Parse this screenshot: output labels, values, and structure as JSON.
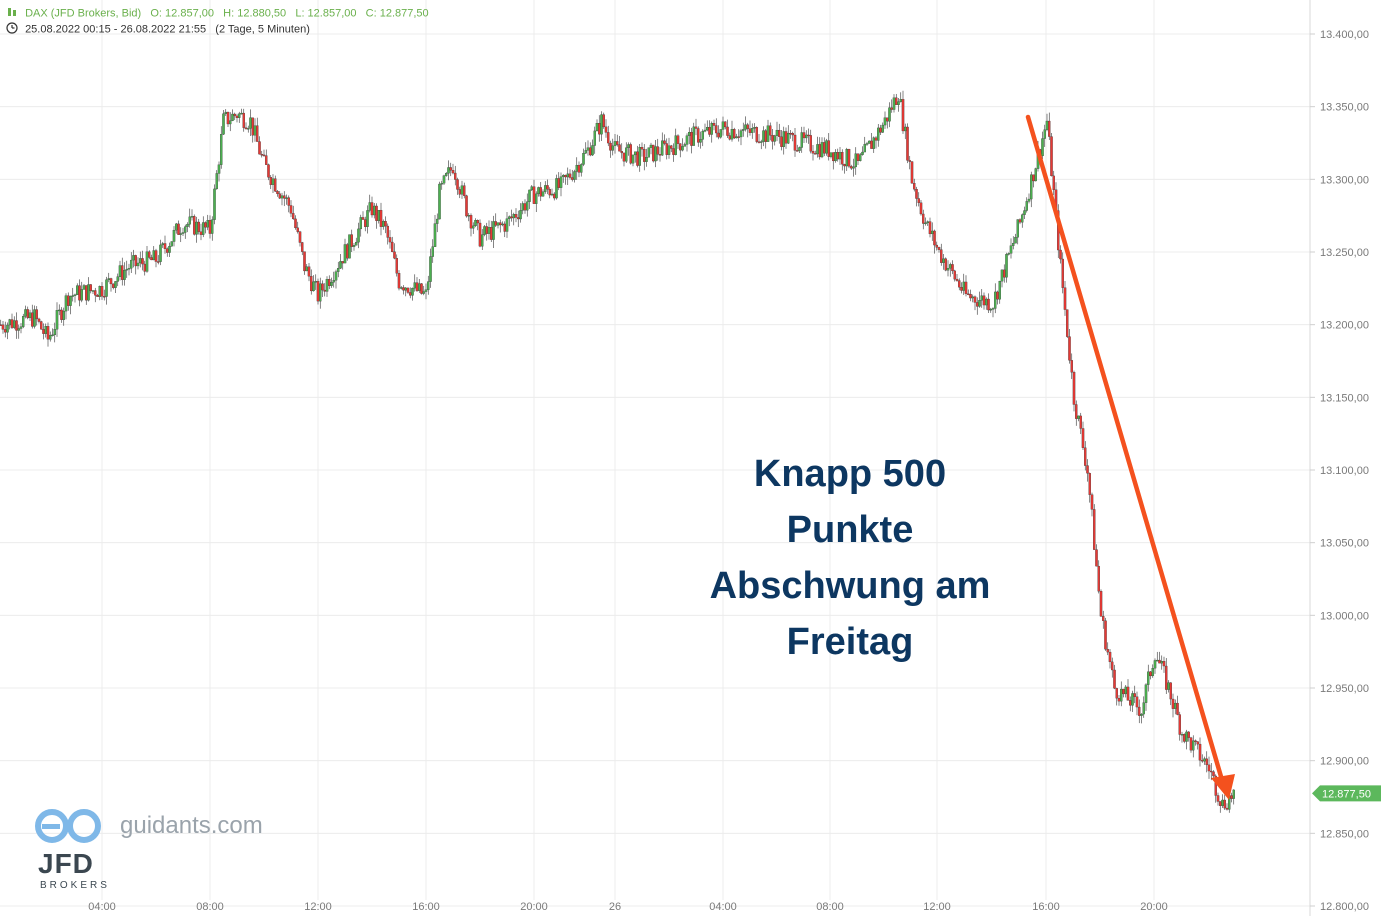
{
  "header": {
    "instrument": "DAX (JFD Brokers, Bid)",
    "open": "O: 12.857,00",
    "high": "H: 12.880,50",
    "low": "L: 12.857,00",
    "close": "C: 12.877,50",
    "range": "25.08.2022 00:15 - 26.08.2022 21:55",
    "interval": "(2 Tage, 5 Minuten)",
    "clock_icon": "clock-icon",
    "candles_icon": "candlestick-icon"
  },
  "annotation": {
    "lines": [
      "Knapp 500",
      "Punkte",
      "Abschwung am",
      "Freitag"
    ],
    "color": "#0d3761",
    "arrow_color": "#f4511e"
  },
  "branding": {
    "site": "guidants.com",
    "broker": "JFD",
    "broker_sub": "BROKERS"
  },
  "chart_data": {
    "type": "candlestick",
    "title": "",
    "xlabel": "",
    "ylabel": "",
    "x_ticks": [
      "04:00",
      "08:00",
      "12:00",
      "16:00",
      "20:00",
      "26",
      "04:00",
      "08:00",
      "12:00",
      "16:00",
      "20:00"
    ],
    "y_ticks": [
      "13.400,00",
      "13.350,00",
      "13.300,00",
      "13.250,00",
      "13.200,00",
      "13.150,00",
      "13.100,00",
      "13.050,00",
      "13.000,00",
      "12.950,00",
      "12.900,00",
      "12.850,00",
      "12.800,00"
    ],
    "ylim": [
      12800,
      13420
    ],
    "last_price_label": "12.877,50",
    "last_price": 12877.5,
    "grid": true,
    "up_color": "#4caf50",
    "down_color": "#e53935",
    "price_path": [
      {
        "x": "25.08 00:15",
        "y": 13200
      },
      {
        "x": "25.08 01:30",
        "y": 13205
      },
      {
        "x": "25.08 02:00",
        "y": 13190
      },
      {
        "x": "25.08 02:45",
        "y": 13220
      },
      {
        "x": "25.08 04:00",
        "y": 13225
      },
      {
        "x": "25.08 05:00",
        "y": 13240
      },
      {
        "x": "25.08 06:00",
        "y": 13245
      },
      {
        "x": "25.08 07:00",
        "y": 13270
      },
      {
        "x": "25.08 08:00",
        "y": 13265
      },
      {
        "x": "25.08 08:30",
        "y": 13340
      },
      {
        "x": "25.08 09:00",
        "y": 13345
      },
      {
        "x": "25.08 09:30",
        "y": 13340
      },
      {
        "x": "25.08 10:00",
        "y": 13310
      },
      {
        "x": "25.08 11:00",
        "y": 13280
      },
      {
        "x": "25.08 11:30",
        "y": 13240
      },
      {
        "x": "25.08 12:00",
        "y": 13220
      },
      {
        "x": "25.08 13:00",
        "y": 13250
      },
      {
        "x": "25.08 14:00",
        "y": 13280
      },
      {
        "x": "25.08 14:30",
        "y": 13265
      },
      {
        "x": "25.08 15:00",
        "y": 13230
      },
      {
        "x": "25.08 16:00",
        "y": 13220
      },
      {
        "x": "25.08 16:30",
        "y": 13290
      },
      {
        "x": "25.08 17:00",
        "y": 13310
      },
      {
        "x": "25.08 17:30",
        "y": 13280
      },
      {
        "x": "25.08 18:00",
        "y": 13260
      },
      {
        "x": "25.08 19:00",
        "y": 13270
      },
      {
        "x": "25.08 20:00",
        "y": 13290
      },
      {
        "x": "25.08 21:00",
        "y": 13295
      },
      {
        "x": "25.08 22:00",
        "y": 13320
      },
      {
        "x": "25.08 22:30",
        "y": 13340
      },
      {
        "x": "25.08 23:00",
        "y": 13320
      },
      {
        "x": "26.08 00:00",
        "y": 13315
      },
      {
        "x": "26.08 02:00",
        "y": 13330
      },
      {
        "x": "26.08 03:00",
        "y": 13335
      },
      {
        "x": "26.08 05:00",
        "y": 13330
      },
      {
        "x": "26.08 07:00",
        "y": 13320
      },
      {
        "x": "26.08 08:00",
        "y": 13310
      },
      {
        "x": "26.08 09:00",
        "y": 13340
      },
      {
        "x": "26.08 09:30",
        "y": 13360
      },
      {
        "x": "26.08 10:00",
        "y": 13300
      },
      {
        "x": "26.08 10:30",
        "y": 13270
      },
      {
        "x": "26.08 11:00",
        "y": 13250
      },
      {
        "x": "26.08 12:00",
        "y": 13220
      },
      {
        "x": "26.08 13:00",
        "y": 13215
      },
      {
        "x": "26.08 14:00",
        "y": 13270
      },
      {
        "x": "26.08 15:00",
        "y": 13340
      },
      {
        "x": "26.08 15:30",
        "y": 13240
      },
      {
        "x": "26.08 16:00",
        "y": 13150
      },
      {
        "x": "26.08 16:30",
        "y": 13100
      },
      {
        "x": "26.08 17:00",
        "y": 13000
      },
      {
        "x": "26.08 17:30",
        "y": 12950
      },
      {
        "x": "26.08 18:30",
        "y": 12935
      },
      {
        "x": "26.08 19:00",
        "y": 12975
      },
      {
        "x": "26.08 19:30",
        "y": 12950
      },
      {
        "x": "26.08 20:00",
        "y": 12920
      },
      {
        "x": "26.08 21:00",
        "y": 12895
      },
      {
        "x": "26.08 21:30",
        "y": 12870
      },
      {
        "x": "26.08 21:55",
        "y": 12877.5
      }
    ]
  }
}
